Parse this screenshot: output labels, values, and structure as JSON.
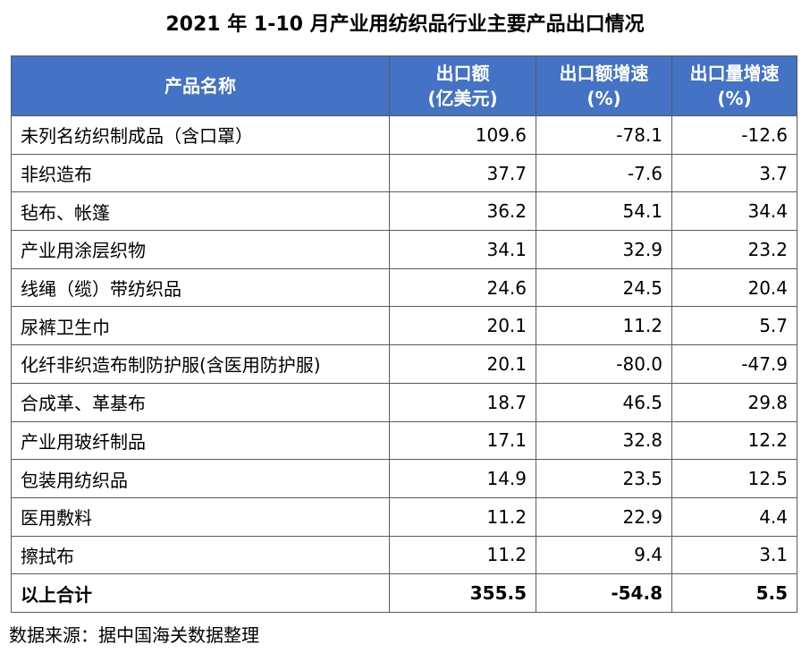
{
  "title": "2021 年 1-10 月产业用纺织品行业主要产品出口情况",
  "headers": {
    "name": "产品名称",
    "export_value": [
      "出口额",
      "(亿美元)"
    ],
    "value_growth": [
      "出口额增速",
      "(%)"
    ],
    "volume_growth": [
      "出口量增速",
      "(%)"
    ]
  },
  "rows": [
    {
      "name": "未列名纺织制成品（含口罩）",
      "export_value": "109.6",
      "value_growth": "-78.1",
      "volume_growth": "-12.6"
    },
    {
      "name": "非织造布",
      "export_value": "37.7",
      "value_growth": "-7.6",
      "volume_growth": "3.7"
    },
    {
      "name": "毡布、帐篷",
      "export_value": "36.2",
      "value_growth": "54.1",
      "volume_growth": "34.4"
    },
    {
      "name": "产业用涂层织物",
      "export_value": "34.1",
      "value_growth": "32.9",
      "volume_growth": "23.2"
    },
    {
      "name": "线绳（缆）带纺织品",
      "export_value": "24.6",
      "value_growth": "24.5",
      "volume_growth": "20.4"
    },
    {
      "name": "尿裤卫生巾",
      "export_value": "20.1",
      "value_growth": "11.2",
      "volume_growth": "5.7"
    },
    {
      "name": "化纤非织造布制防护服(含医用防护服)",
      "export_value": "20.1",
      "value_growth": "-80.0",
      "volume_growth": "-47.9"
    },
    {
      "name": "合成革、革基布",
      "export_value": "18.7",
      "value_growth": "46.5",
      "volume_growth": "29.8"
    },
    {
      "name": "产业用玻纤制品",
      "export_value": "17.1",
      "value_growth": "32.8",
      "volume_growth": "12.2"
    },
    {
      "name": "包装用纺织品",
      "export_value": "14.9",
      "value_growth": "23.5",
      "volume_growth": "12.5"
    },
    {
      "name": "医用敷料",
      "export_value": "11.2",
      "value_growth": "22.9",
      "volume_growth": "4.4"
    },
    {
      "name": "擦拭布",
      "export_value": "11.2",
      "value_growth": "9.4",
      "volume_growth": "3.1"
    }
  ],
  "total": {
    "name": "以上合计",
    "export_value": "355.5",
    "value_growth": "-54.8",
    "volume_growth": "5.5"
  },
  "source": "数据来源：据中国海关数据整理",
  "colors": {
    "header_bg": "#4472c4",
    "header_text": "#ffffff",
    "border": "#5a5a5a"
  }
}
